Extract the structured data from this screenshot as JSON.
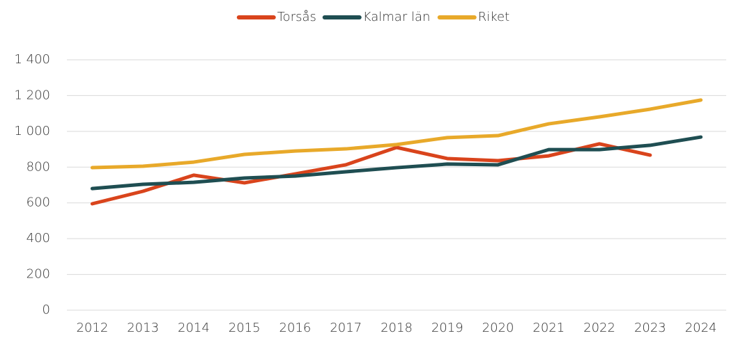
{
  "chart_data": {
    "type": "line",
    "categories": [
      "2012",
      "2013",
      "2014",
      "2015",
      "2016",
      "2017",
      "2018",
      "2019",
      "2020",
      "2021",
      "2022",
      "2023",
      "2024"
    ],
    "series": [
      {
        "name": "Torsås",
        "color": "#d9441c",
        "values": [
          595,
          665,
          755,
          712,
          762,
          813,
          910,
          848,
          836,
          863,
          930,
          867,
          null
        ]
      },
      {
        "name": "Kalmar län",
        "color": "#1f4e52",
        "values": [
          680,
          704,
          715,
          739,
          750,
          774,
          797,
          817,
          813,
          898,
          898,
          922,
          968
        ]
      },
      {
        "name": "Riket",
        "color": "#e8a92a",
        "values": [
          797,
          805,
          828,
          871,
          890,
          902,
          926,
          965,
          976,
          1042,
          1081,
          1124,
          1175
        ]
      }
    ],
    "ylim": [
      0,
      1400
    ],
    "yticks": [
      0,
      200,
      400,
      600,
      800,
      {
        "value": 1000,
        "label": "1 000"
      },
      {
        "value": 1200,
        "label": "1 200"
      },
      {
        "value": 1400,
        "label": "1 400"
      }
    ],
    "grid": true,
    "legend": "top"
  }
}
